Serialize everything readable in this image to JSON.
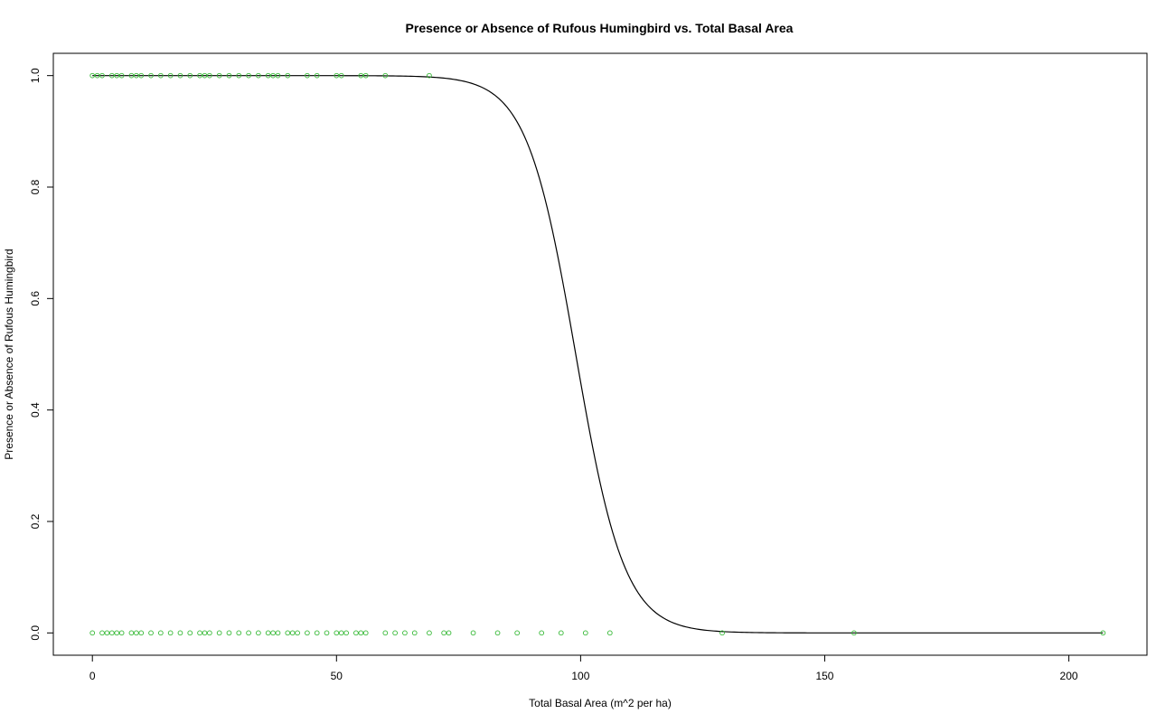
{
  "chart_data": {
    "type": "scatter",
    "title": "Presence or Absence of Rufous Humingbird vs. Total Basal Area",
    "xlabel": "Total Basal Area (m^2 per ha)",
    "ylabel": "Presence or Absence of Rufous Humingbird",
    "xlim": [
      -8,
      216
    ],
    "ylim": [
      -0.04,
      1.04
    ],
    "x_ticks": [
      0,
      50,
      100,
      150,
      200
    ],
    "x_tick_labels": [
      "0",
      "50",
      "100",
      "150",
      "200"
    ],
    "y_ticks": [
      0.0,
      0.2,
      0.4,
      0.6,
      0.8,
      1.0
    ],
    "y_tick_labels": [
      "0.0",
      "0.2",
      "0.4",
      "0.6",
      "0.8",
      "1.0"
    ],
    "grid": false,
    "point_color": "#33b833",
    "line_color": "#000000",
    "series": [
      {
        "kind": "points",
        "presence": 1,
        "x": [
          0,
          1,
          2,
          4,
          5,
          6,
          8,
          9,
          10,
          12,
          14,
          16,
          18,
          20,
          22,
          23,
          24,
          26,
          28,
          30,
          32,
          34,
          36,
          37,
          38,
          40,
          44,
          46,
          50,
          51,
          55,
          56,
          60,
          69
        ],
        "y": [
          1,
          1,
          1,
          1,
          1,
          1,
          1,
          1,
          1,
          1,
          1,
          1,
          1,
          1,
          1,
          1,
          1,
          1,
          1,
          1,
          1,
          1,
          1,
          1,
          1,
          1,
          1,
          1,
          1,
          1,
          1,
          1,
          1,
          1
        ]
      },
      {
        "kind": "points",
        "presence": 0,
        "x": [
          0,
          2,
          3,
          4,
          5,
          6,
          8,
          9,
          10,
          12,
          14,
          16,
          18,
          20,
          22,
          23,
          24,
          26,
          28,
          30,
          32,
          34,
          36,
          37,
          38,
          40,
          41,
          42,
          44,
          46,
          48,
          50,
          51,
          52,
          54,
          55,
          56,
          60,
          62,
          64,
          66,
          69,
          72,
          73,
          78,
          83,
          87,
          92,
          96,
          101,
          106,
          129,
          156,
          207
        ],
        "y": [
          0,
          0,
          0,
          0,
          0,
          0,
          0,
          0,
          0,
          0,
          0,
          0,
          0,
          0,
          0,
          0,
          0,
          0,
          0,
          0,
          0,
          0,
          0,
          0,
          0,
          0,
          0,
          0,
          0,
          0,
          0,
          0,
          0,
          0,
          0,
          0,
          0,
          0,
          0,
          0,
          0,
          0,
          0,
          0,
          0,
          0,
          0,
          0,
          0,
          0,
          0,
          0,
          0,
          0
        ]
      },
      {
        "kind": "fitted-logistic-curve",
        "x_range": [
          0,
          207
        ],
        "midpoint": 99.0,
        "scale": 5.0
      }
    ]
  }
}
